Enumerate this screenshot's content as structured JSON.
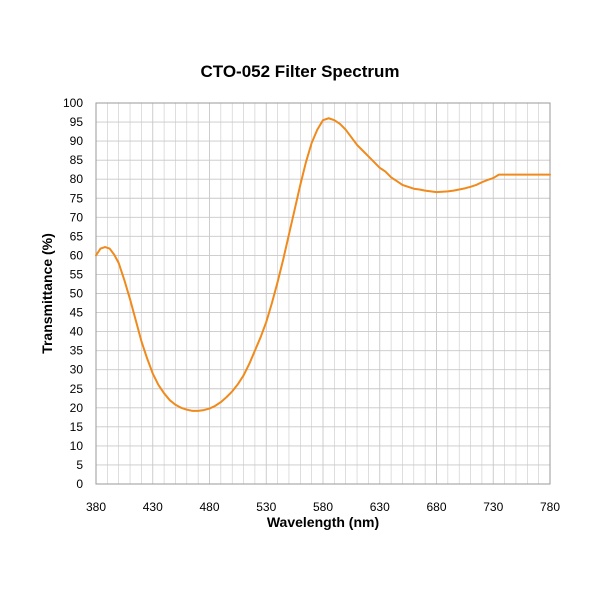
{
  "chart_data": {
    "type": "line",
    "title": "CTO-052 Filter Spectrum",
    "xlabel": "Wavelength (nm)",
    "ylabel": "Transmittance (%)",
    "xlim": [
      380,
      780
    ],
    "ylim": [
      0,
      100
    ],
    "x_ticks": [
      380,
      430,
      480,
      530,
      580,
      630,
      680,
      730,
      780
    ],
    "y_ticks": [
      0,
      5,
      10,
      15,
      20,
      25,
      30,
      35,
      40,
      45,
      50,
      55,
      60,
      65,
      70,
      75,
      80,
      85,
      90,
      95,
      100
    ],
    "x_minor_step": 10,
    "grid": true,
    "legend": "none",
    "line_color": "#f08a1c",
    "grid_color": "#c8c8c8",
    "series": [
      {
        "x": [
          380,
          384,
          388,
          392,
          396,
          400,
          405,
          410,
          415,
          420,
          425,
          430,
          435,
          440,
          445,
          450,
          455,
          460,
          465,
          470,
          475,
          480,
          485,
          490,
          495,
          500,
          505,
          510,
          515,
          520,
          525,
          530,
          535,
          540,
          545,
          550,
          555,
          560,
          565,
          570,
          575,
          580,
          585,
          590,
          595,
          600,
          605,
          610,
          615,
          620,
          625,
          630,
          635,
          640,
          645,
          650,
          655,
          660,
          665,
          670,
          675,
          680,
          685,
          690,
          695,
          700,
          705,
          710,
          715,
          720,
          725,
          730,
          735,
          740,
          745,
          750,
          755,
          760,
          765,
          770,
          775,
          780
        ],
        "y": [
          60,
          61.8,
          62.2,
          61.8,
          60.2,
          58,
          53.5,
          48.5,
          43,
          37.5,
          33,
          29,
          26,
          23.8,
          22,
          20.8,
          20,
          19.5,
          19.2,
          19.2,
          19.4,
          19.8,
          20.5,
          21.5,
          22.8,
          24.3,
          26.2,
          28.5,
          31.5,
          35,
          38.5,
          42.5,
          47.5,
          53,
          59,
          65.5,
          72,
          78.5,
          84.5,
          89.5,
          93,
          95.5,
          96,
          95.5,
          94.5,
          93,
          91,
          89,
          87.5,
          86,
          84.5,
          83,
          82,
          80.5,
          79.5,
          78.5,
          78,
          77.5,
          77.3,
          77,
          76.8,
          76.6,
          76.7,
          76.8,
          77,
          77.3,
          77.6,
          78,
          78.5,
          79.2,
          79.8,
          80.3,
          81.2,
          81.2,
          81.2,
          81.2,
          81.2,
          81.2,
          81.2,
          81.2,
          81.2,
          81.2
        ]
      }
    ]
  }
}
